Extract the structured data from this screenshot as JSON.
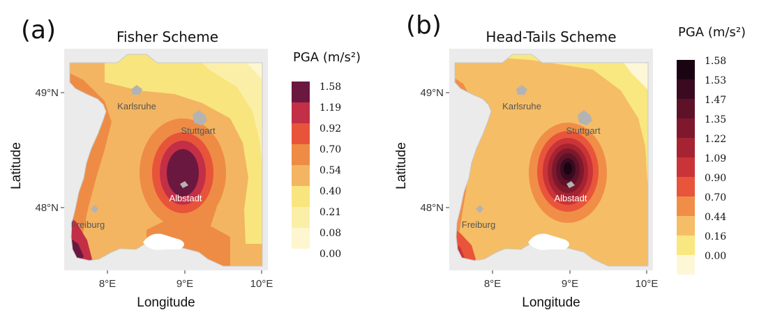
{
  "panels": [
    {
      "label": "(a)",
      "title": "Fisher Scheme",
      "legend_title": "PGA (m/s²)",
      "legend": [
        {
          "label": "1.58",
          "color": "#6b1840"
        },
        {
          "label": "1.19",
          "color": "#c22f46"
        },
        {
          "label": "0.92",
          "color": "#e8543a"
        },
        {
          "label": "0.70",
          "color": "#ee8c45"
        },
        {
          "label": "0.54",
          "color": "#f3b562"
        },
        {
          "label": "0.40",
          "color": "#f8e57e"
        },
        {
          "label": "0.21",
          "color": "#fbefa8"
        },
        {
          "label": "0.08",
          "color": "#fdf6cf"
        },
        {
          "label": "0.00",
          "color": null
        }
      ]
    },
    {
      "label": "(b)",
      "title": "Head-Tails Scheme",
      "legend_title": "PGA (m/s²)",
      "legend": [
        {
          "label": "1.58",
          "color": "#1b0412"
        },
        {
          "label": "1.53",
          "color": "#3a0b20"
        },
        {
          "label": "1.47",
          "color": "#5d1228"
        },
        {
          "label": "1.35",
          "color": "#7f182d"
        },
        {
          "label": "1.22",
          "color": "#a62331"
        },
        {
          "label": "1.09",
          "color": "#ca3438"
        },
        {
          "label": "0.90",
          "color": "#e9553a"
        },
        {
          "label": "0.70",
          "color": "#f08e48"
        },
        {
          "label": "0.44",
          "color": "#f5bd66"
        },
        {
          "label": "0.16",
          "color": "#f9e77f"
        },
        {
          "label": "0.00",
          "color": "#fdf7d8"
        }
      ]
    }
  ],
  "axes": {
    "xlabel": "Longitude",
    "ylabel": "Latitude",
    "xticks": [
      "8°E",
      "9°E",
      "10°E"
    ],
    "yticks": [
      "49°N",
      "48°N"
    ]
  },
  "cities": {
    "karlsruhe": "Karlsruhe",
    "stuttgart": "Stuttgart",
    "albstadt": "Albstadt",
    "freiburg": "Freiburg"
  },
  "colors": {
    "city_marker": "#b3b3b3",
    "lake": "#ffffff",
    "border": "#c8c8c8"
  }
}
